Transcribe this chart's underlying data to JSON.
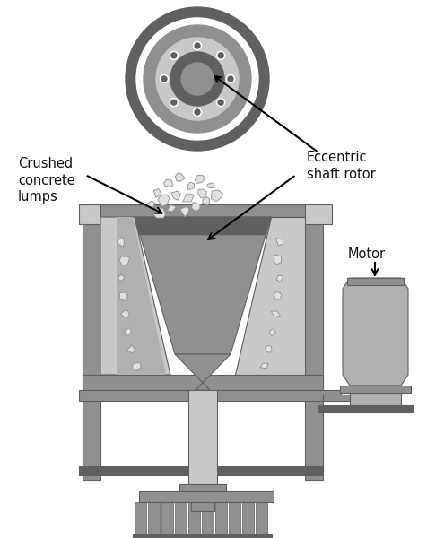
{
  "bg_color": "#ffffff",
  "gray_dark": "#606060",
  "gray_med": "#909090",
  "gray_light": "#b0b0b0",
  "gray_lighter": "#c8c8c8",
  "gray_lightest": "#e0e0e0",
  "gray_verydark": "#404040",
  "text_color": "#111111",
  "labels": {
    "crushed": "Crushed\nconcrete\nlumps",
    "eccentric": "Eccentric\nshaft rotor",
    "motor": "Motor"
  },
  "figsize": [
    4.77,
    6.0
  ],
  "dpi": 100
}
